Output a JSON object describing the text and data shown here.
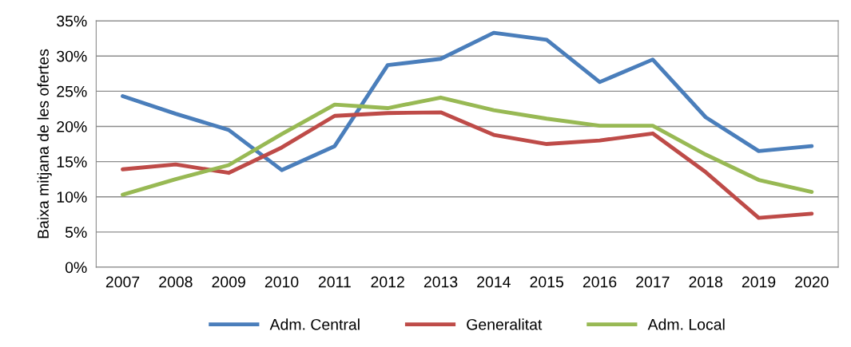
{
  "chart_data": {
    "type": "line",
    "ylabel": "Baixa mitjana de les ofertes",
    "categories": [
      "2007",
      "2008",
      "2009",
      "2010",
      "2011",
      "2012",
      "2013",
      "2014",
      "2015",
      "2016",
      "2017",
      "2018",
      "2019",
      "2020"
    ],
    "series": [
      {
        "name": "Adm. Central",
        "color": "#4a7ebb",
        "values": [
          24.3,
          21.8,
          19.5,
          13.8,
          17.2,
          28.7,
          29.6,
          33.3,
          32.3,
          26.3,
          29.5,
          21.3,
          16.5,
          17.2
        ]
      },
      {
        "name": "Generalitat",
        "color": "#be4b48",
        "values": [
          13.9,
          14.6,
          13.4,
          17.0,
          21.5,
          21.9,
          22.0,
          18.8,
          17.5,
          18.0,
          19.0,
          13.5,
          7.0,
          7.6
        ]
      },
      {
        "name": "Adm. Local",
        "color": "#98b954",
        "values": [
          10.3,
          12.5,
          14.5,
          18.9,
          23.1,
          22.6,
          24.1,
          22.3,
          21.1,
          20.1,
          20.1,
          16.0,
          12.4,
          10.7
        ]
      }
    ],
    "ylim": [
      0,
      35
    ],
    "yticks": [
      {
        "value": 0,
        "label": "0%"
      },
      {
        "value": 5,
        "label": "5%"
      },
      {
        "value": 10,
        "label": "10%"
      },
      {
        "value": 15,
        "label": "15%"
      },
      {
        "value": 20,
        "label": "20%"
      },
      {
        "value": 25,
        "label": "25%"
      },
      {
        "value": 30,
        "label": "30%"
      },
      {
        "value": 35,
        "label": "35%"
      }
    ],
    "grid": "y",
    "legend": "bottom",
    "marker": "none",
    "line_style": "solid"
  }
}
